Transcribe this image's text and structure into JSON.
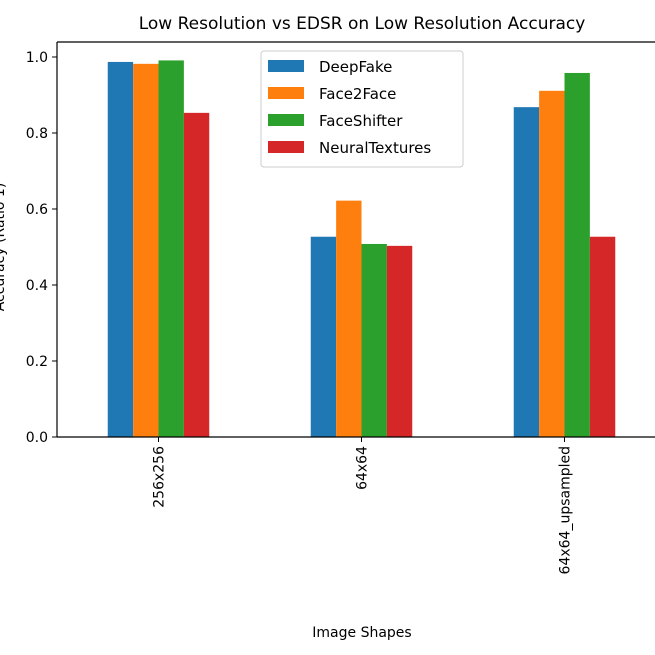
{
  "chart_data": {
    "type": "bar",
    "title": "Low Resolution vs EDSR on Low Resolution Accuracy",
    "xlabel": "Image Shapes",
    "ylabel": "Accuracy (Ratio 1)",
    "categories": [
      "256x256",
      "64x64",
      "64x64_upsampled"
    ],
    "series": [
      {
        "name": "DeepFake",
        "color": "#1f77b4",
        "values": [
          0.987,
          0.527,
          0.868
        ]
      },
      {
        "name": "Face2Face",
        "color": "#ff7f0e",
        "values": [
          0.982,
          0.622,
          0.911
        ]
      },
      {
        "name": "FaceShifter",
        "color": "#2ca02c",
        "values": [
          0.991,
          0.508,
          0.958
        ]
      },
      {
        "name": "NeuralTextures",
        "color": "#d62728",
        "values": [
          0.853,
          0.503,
          0.527
        ]
      }
    ],
    "ylim": [
      0,
      1.04
    ],
    "yticks": [
      "0.0",
      "0.2",
      "0.4",
      "0.6",
      "0.8",
      "1.0"
    ],
    "grid": false,
    "legend": "top-center"
  }
}
